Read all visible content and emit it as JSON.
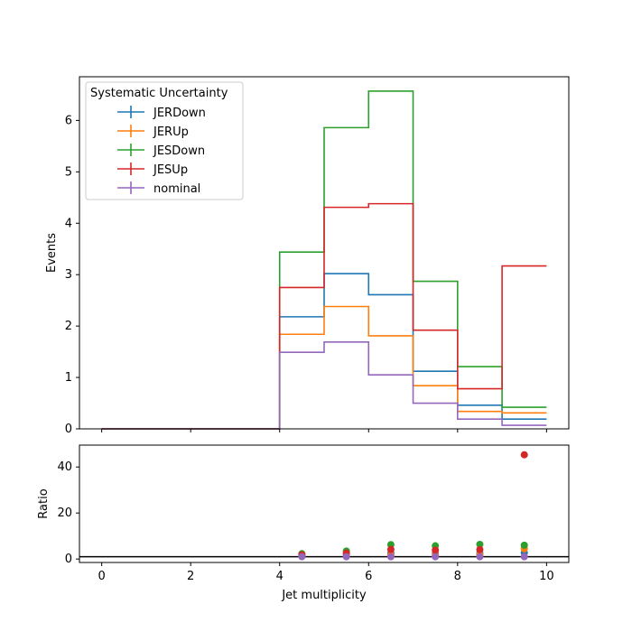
{
  "chart_data": {
    "type": "step-histogram-with-ratio",
    "top_panel": {
      "ylabel": "Events",
      "xlim": [
        -0.5,
        10.5
      ],
      "ylim": [
        0,
        6.85
      ],
      "yticks": [
        0,
        1,
        2,
        3,
        4,
        5,
        6
      ],
      "bin_edges": [
        0,
        1,
        2,
        3,
        4,
        5,
        6,
        7,
        8,
        9,
        10
      ],
      "legend": {
        "title": "Systematic Uncertainty",
        "placement": "top-left"
      },
      "series": [
        {
          "name": "JERDown",
          "color": "#1f77b4",
          "values": [
            0,
            0,
            0,
            0,
            2.18,
            3.02,
            2.61,
            1.12,
            0.46,
            0.19
          ]
        },
        {
          "name": "JERUp",
          "color": "#ff7f0e",
          "values": [
            0,
            0,
            0,
            0,
            1.84,
            2.38,
            1.81,
            0.84,
            0.34,
            0.31
          ]
        },
        {
          "name": "JESDown",
          "color": "#2ca02c",
          "values": [
            0,
            0,
            0,
            0,
            3.44,
            5.86,
            6.57,
            2.87,
            1.21,
            0.42
          ]
        },
        {
          "name": "JESUp",
          "color": "#d62728",
          "values": [
            0,
            0,
            0,
            0,
            2.75,
            4.31,
            4.38,
            1.92,
            0.78,
            3.17
          ]
        },
        {
          "name": "nominal",
          "color": "#9467bd",
          "values": [
            0,
            0,
            0,
            0,
            1.49,
            1.69,
            1.05,
            0.5,
            0.19,
            0.07
          ]
        }
      ]
    },
    "ratio_panel": {
      "ylabel": "Ratio",
      "xlabel": "Jet multiplicity",
      "xlim": [
        -0.5,
        10.5
      ],
      "ylim": [
        -1.5,
        49.5
      ],
      "yticks": [
        0,
        20,
        40
      ],
      "xticks": [
        0,
        2,
        4,
        6,
        8,
        10
      ],
      "reference_line": 1,
      "x": [
        4.5,
        5.5,
        6.5,
        7.5,
        8.5,
        9.5
      ],
      "series": [
        {
          "name": "JERDown",
          "color": "#1f77b4",
          "values": [
            1.46,
            1.79,
            2.49,
            2.24,
            2.42,
            2.71
          ]
        },
        {
          "name": "JERUp",
          "color": "#ff7f0e",
          "values": [
            1.23,
            1.41,
            1.72,
            1.68,
            1.79,
            4.43
          ]
        },
        {
          "name": "JESDown",
          "color": "#2ca02c",
          "values": [
            2.31,
            3.47,
            6.26,
            5.74,
            6.37,
            6.0
          ]
        },
        {
          "name": "JESUp",
          "color": "#d62728",
          "values": [
            1.85,
            2.55,
            4.17,
            3.84,
            4.11,
            45.3
          ]
        },
        {
          "name": "nominal",
          "color": "#9467bd",
          "values": [
            1,
            1,
            1,
            1,
            1,
            1
          ]
        }
      ]
    }
  }
}
